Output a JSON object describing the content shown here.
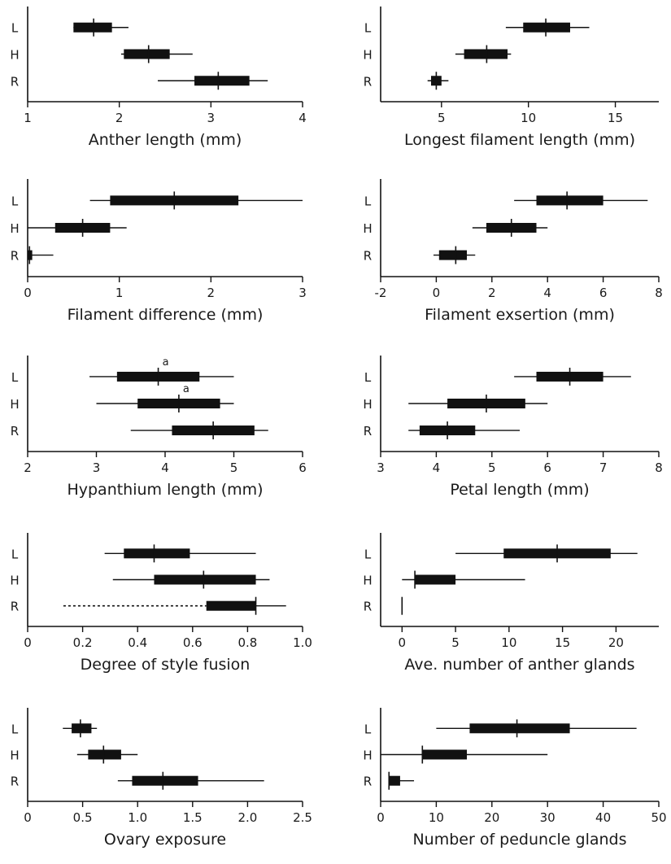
{
  "chart_data": [
    {
      "type": "box-range",
      "xlabel": "Anther length (mm)",
      "xlim": [
        1,
        4
      ],
      "xticks": [
        1,
        2,
        3,
        4
      ],
      "tick_labels": [
        "1",
        "2",
        "3",
        "4"
      ],
      "categories": [
        "L",
        "H",
        "R"
      ],
      "series": [
        {
          "min": 1.5,
          "q1": 1.5,
          "median": 1.72,
          "q3": 1.92,
          "max": 2.1
        },
        {
          "min": 2.02,
          "q1": 2.05,
          "median": 2.32,
          "q3": 2.55,
          "max": 2.8
        },
        {
          "min": 2.42,
          "q1": 2.82,
          "median": 3.08,
          "q3": 3.42,
          "max": 3.62
        }
      ]
    },
    {
      "type": "box-range",
      "xlabel": "Longest filament length (mm)",
      "xlim": [
        1.5,
        17.5
      ],
      "xticks": [
        5,
        10,
        15
      ],
      "tick_labels": [
        "5",
        "10",
        "15"
      ],
      "categories": [
        "L",
        "H",
        "R"
      ],
      "series": [
        {
          "min": 8.7,
          "q1": 9.7,
          "median": 11.0,
          "q3": 12.4,
          "max": 13.5
        },
        {
          "min": 5.8,
          "q1": 6.3,
          "median": 7.6,
          "q3": 8.8,
          "max": 9.0
        },
        {
          "min": 4.2,
          "q1": 4.4,
          "median": 4.7,
          "q3": 5.0,
          "max": 5.4
        }
      ]
    },
    {
      "type": "box-range",
      "xlabel": "Filament difference (mm)",
      "xlim": [
        0,
        3
      ],
      "xticks": [
        0,
        1,
        2,
        3
      ],
      "tick_labels": [
        "0",
        "1",
        "2",
        "3"
      ],
      "categories": [
        "L",
        "H",
        "R"
      ],
      "series": [
        {
          "min": 0.68,
          "q1": 0.9,
          "median": 1.6,
          "q3": 2.3,
          "max": 3.0
        },
        {
          "min": 0.0,
          "q1": 0.3,
          "median": 0.6,
          "q3": 0.9,
          "max": 1.08
        },
        {
          "min": 0.0,
          "q1": 0.0,
          "median": 0.02,
          "q3": 0.05,
          "max": 0.28
        }
      ]
    },
    {
      "type": "box-range",
      "xlabel": "Filament exsertion (mm)",
      "xlim": [
        -2,
        8
      ],
      "xticks": [
        -2,
        0,
        2,
        4,
        6,
        8
      ],
      "tick_labels": [
        "-2",
        "0",
        "2",
        "4",
        "6",
        "8"
      ],
      "categories": [
        "L",
        "H",
        "R"
      ],
      "series": [
        {
          "min": 2.8,
          "q1": 3.6,
          "median": 4.7,
          "q3": 6.0,
          "max": 7.6
        },
        {
          "min": 1.3,
          "q1": 1.8,
          "median": 2.7,
          "q3": 3.6,
          "max": 4.0
        },
        {
          "min": -0.1,
          "q1": 0.1,
          "median": 0.7,
          "q3": 1.1,
          "max": 1.4
        }
      ]
    },
    {
      "type": "box-range",
      "xlabel": "Hypanthium length (mm)",
      "xlim": [
        2,
        6
      ],
      "xticks": [
        2,
        3,
        4,
        5,
        6
      ],
      "tick_labels": [
        "2",
        "3",
        "4",
        "5",
        "6"
      ],
      "categories": [
        "L",
        "H",
        "R"
      ],
      "series": [
        {
          "min": 2.9,
          "q1": 3.3,
          "median": 3.9,
          "q3": 4.5,
          "max": 5.0,
          "annotation": "a"
        },
        {
          "min": 3.0,
          "q1": 3.6,
          "median": 4.2,
          "q3": 4.8,
          "max": 5.0,
          "annotation": "a"
        },
        {
          "min": 3.5,
          "q1": 4.1,
          "median": 4.7,
          "q3": 5.3,
          "max": 5.5
        }
      ]
    },
    {
      "type": "box-range",
      "xlabel": "Petal length (mm)",
      "xlim": [
        3,
        8
      ],
      "xticks": [
        3,
        4,
        5,
        6,
        7,
        8
      ],
      "tick_labels": [
        "3",
        "4",
        "5",
        "6",
        "7",
        "8"
      ],
      "categories": [
        "L",
        "H",
        "R"
      ],
      "series": [
        {
          "min": 5.4,
          "q1": 5.8,
          "median": 6.4,
          "q3": 7.0,
          "max": 7.5
        },
        {
          "min": 3.5,
          "q1": 4.2,
          "median": 4.9,
          "q3": 5.6,
          "max": 6.0
        },
        {
          "min": 3.5,
          "q1": 3.7,
          "median": 4.2,
          "q3": 4.7,
          "max": 5.5
        }
      ]
    },
    {
      "type": "box-range",
      "xlabel": "Degree of style fusion",
      "xlim": [
        0,
        1.0
      ],
      "xticks": [
        0,
        0.2,
        0.4,
        0.6,
        0.8,
        1.0
      ],
      "tick_labels": [
        "0",
        "0.2",
        "0.4",
        "0.6",
        "0.8",
        "1.0"
      ],
      "categories": [
        "L",
        "H",
        "R"
      ],
      "series": [
        {
          "min": 0.28,
          "q1": 0.35,
          "median": 0.46,
          "q3": 0.59,
          "max": 0.83
        },
        {
          "min": 0.31,
          "q1": 0.46,
          "median": 0.64,
          "q3": 0.83,
          "max": 0.88
        },
        {
          "min": 0.13,
          "q1": 0.65,
          "median": 0.83,
          "q3": 0.83,
          "max": 0.94,
          "dashed_lower": true
        }
      ]
    },
    {
      "type": "box-range",
      "xlabel": "Ave. number of anther glands",
      "xlim": [
        -2,
        24
      ],
      "xticks": [
        0,
        5,
        10,
        15,
        20
      ],
      "tick_labels": [
        "0",
        "5",
        "10",
        "15",
        "20"
      ],
      "categories": [
        "L",
        "H",
        "R"
      ],
      "series": [
        {
          "min": 5.0,
          "q1": 9.5,
          "median": 14.5,
          "q3": 19.5,
          "max": 22.0
        },
        {
          "min": 0.0,
          "q1": 1.2,
          "median": 1.2,
          "q3": 5.0,
          "max": 11.5
        },
        {
          "min": 0.0,
          "q1": 0.0,
          "median": 0.0,
          "q3": 0.0,
          "max": 0.0
        }
      ]
    },
    {
      "type": "box-range",
      "xlabel": "Ovary exposure",
      "xlim": [
        0,
        2.5
      ],
      "xticks": [
        0,
        0.5,
        1.0,
        1.5,
        2.0,
        2.5
      ],
      "tick_labels": [
        "0",
        "0.5",
        "1.0",
        "1.5",
        "2.0",
        "2.5"
      ],
      "categories": [
        "L",
        "H",
        "R"
      ],
      "series": [
        {
          "min": 0.32,
          "q1": 0.4,
          "median": 0.48,
          "q3": 0.58,
          "max": 0.63
        },
        {
          "min": 0.45,
          "q1": 0.55,
          "median": 0.69,
          "q3": 0.85,
          "max": 1.0
        },
        {
          "min": 0.82,
          "q1": 0.95,
          "median": 1.23,
          "q3": 1.55,
          "max": 2.15
        }
      ]
    },
    {
      "type": "box-range",
      "xlabel": "Number of peduncle glands",
      "xlim": [
        0,
        50
      ],
      "xticks": [
        0,
        10,
        20,
        30,
        40,
        50
      ],
      "tick_labels": [
        "0",
        "10",
        "20",
        "30",
        "40",
        "50"
      ],
      "categories": [
        "L",
        "H",
        "R"
      ],
      "series": [
        {
          "min": 10.0,
          "q1": 16.0,
          "median": 24.5,
          "q3": 34.0,
          "max": 46.0
        },
        {
          "min": 0.0,
          "q1": 7.5,
          "median": 7.5,
          "q3": 15.5,
          "max": 30.0
        },
        {
          "min": 1.5,
          "q1": 1.5,
          "median": 1.5,
          "q3": 3.5,
          "max": 6.0
        }
      ]
    }
  ]
}
